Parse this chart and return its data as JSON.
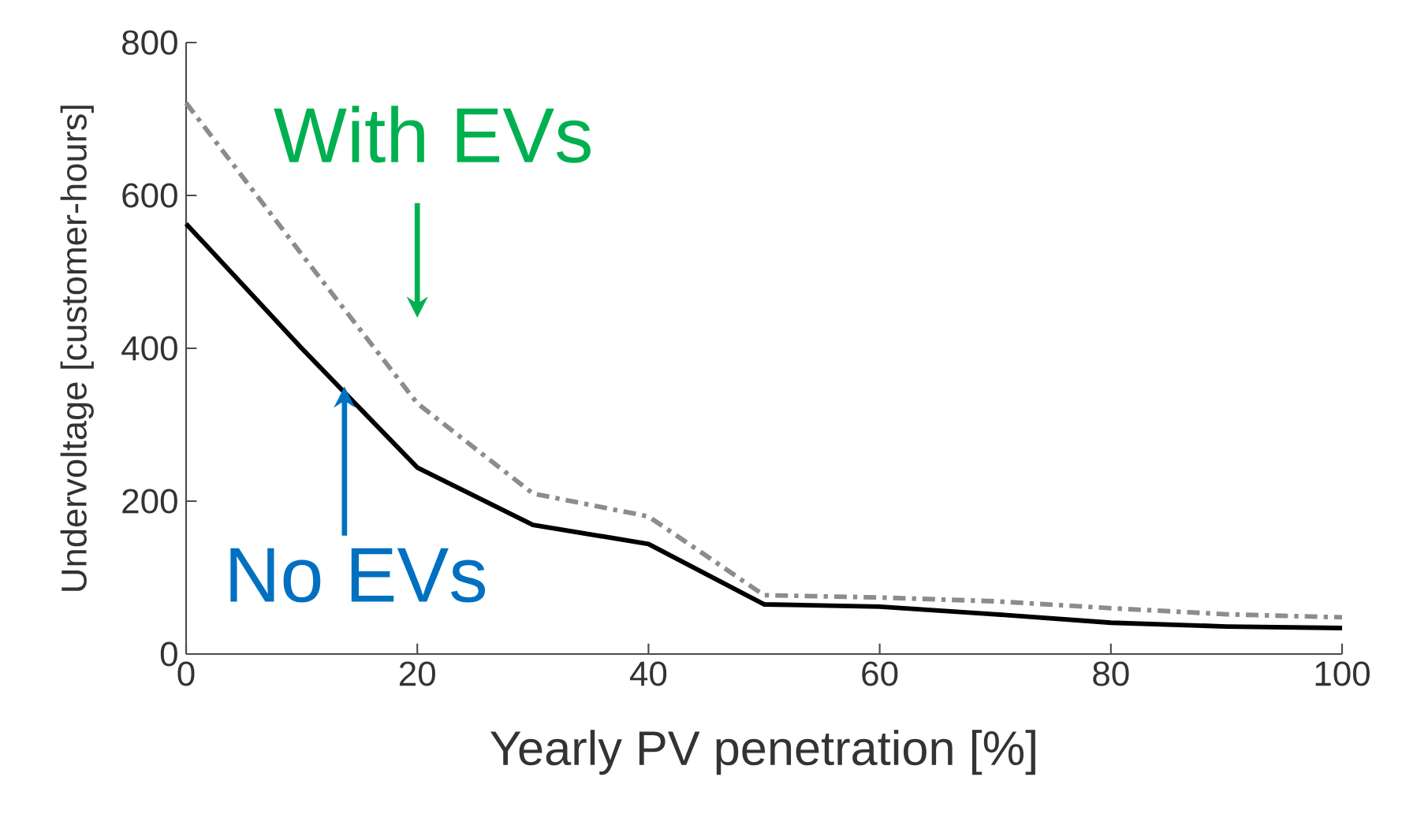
{
  "chart_data": {
    "type": "line",
    "xlabel": "Yearly PV penetration [%]",
    "ylabel": "Undervoltage [customer-hours]",
    "x": [
      0,
      10,
      20,
      30,
      40,
      50,
      60,
      70,
      80,
      90,
      100
    ],
    "series": [
      {
        "name": "With EVs",
        "color": "#8c8c8c",
        "line_style": "dashdot",
        "values": [
          721,
          523,
          328,
          210,
          180,
          77,
          74,
          69,
          60,
          52,
          48
        ]
      },
      {
        "name": "No EVs",
        "color": "#000000",
        "line_style": "solid",
        "values": [
          563,
          400,
          244,
          169,
          144,
          65,
          62,
          52,
          41,
          36,
          34
        ]
      }
    ],
    "xlim": [
      0,
      100
    ],
    "ylim": [
      0,
      800
    ],
    "xticks": [
      0,
      20,
      40,
      60,
      80,
      100
    ],
    "yticks": [
      0,
      200,
      400,
      600,
      800
    ],
    "grid": false
  }
}
